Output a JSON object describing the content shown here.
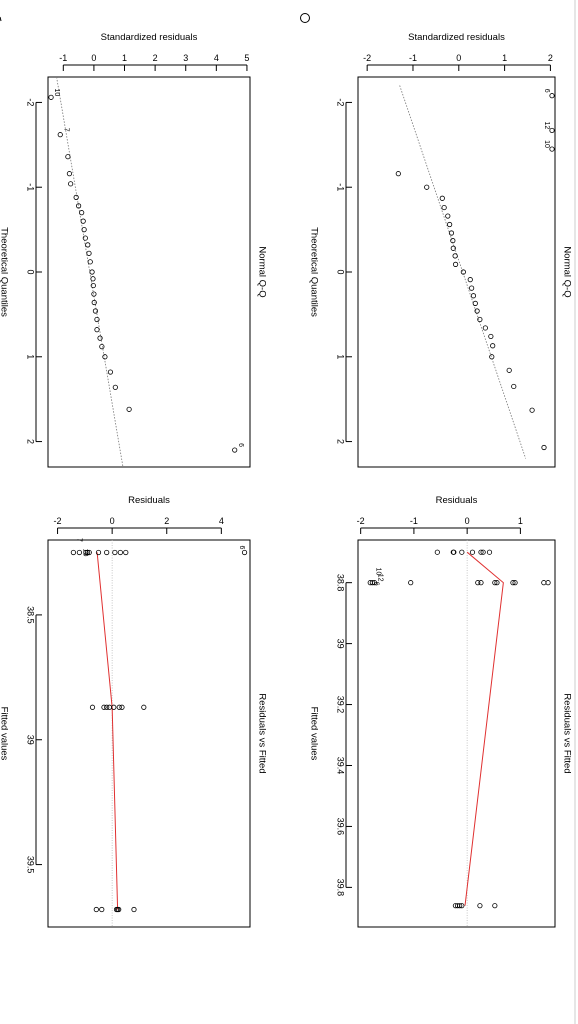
{
  "charts": [
    {
      "id": "qq_right",
      "type": "scatter",
      "title": "Normal Q-Q",
      "xlabel": "Theoretical Quantiles",
      "ylabel": "Standardized residuals",
      "xlim": [
        -2.3,
        2.3
      ],
      "ylim": [
        -2.2,
        2.1
      ],
      "xticks": [
        -2,
        -1,
        0,
        1,
        2
      ],
      "yticks": [
        -2,
        -1,
        0,
        1,
        2
      ],
      "reference_line": [
        [
          -2.2,
          -1.29
        ],
        [
          2.2,
          1.46
        ]
      ],
      "points": [
        [
          -2.08,
          2.2
        ],
        [
          -1.67,
          2.2
        ],
        [
          -1.45,
          2.2
        ],
        [
          -1.16,
          -1.32
        ],
        [
          -1.0,
          -0.7
        ],
        [
          -0.87,
          -0.36
        ],
        [
          -0.76,
          -0.32
        ],
        [
          -0.66,
          -0.24
        ],
        [
          -0.56,
          -0.2
        ],
        [
          -0.46,
          -0.16
        ],
        [
          -0.37,
          -0.13
        ],
        [
          -0.28,
          -0.12
        ],
        [
          -0.19,
          -0.08
        ],
        [
          -0.09,
          -0.07
        ],
        [
          0.0,
          0.1
        ],
        [
          0.09,
          0.25
        ],
        [
          0.19,
          0.28
        ],
        [
          0.28,
          0.32
        ],
        [
          0.37,
          0.36
        ],
        [
          0.46,
          0.4
        ],
        [
          0.56,
          0.46
        ],
        [
          0.66,
          0.58
        ],
        [
          0.76,
          0.7
        ],
        [
          0.87,
          0.74
        ],
        [
          1.0,
          0.72
        ],
        [
          1.16,
          1.1
        ],
        [
          1.35,
          1.2
        ],
        [
          1.63,
          1.6
        ],
        [
          2.07,
          1.86
        ]
      ],
      "labels": [
        {
          "text": "6",
          "x": -2.08,
          "y": 2.2
        },
        {
          "text": "12",
          "x": -1.67,
          "y": 2.2
        },
        {
          "text": "10",
          "x": -1.45,
          "y": 2.2
        }
      ]
    },
    {
      "id": "qq_left",
      "type": "scatter",
      "title": "Normal Q-Q",
      "xlabel": "Theoretical Quantiles",
      "ylabel": "Standardized residuals",
      "xlim": [
        -2.3,
        2.3
      ],
      "ylim": [
        -1.5,
        5.1
      ],
      "xticks": [
        -2,
        -1,
        0,
        1,
        2
      ],
      "yticks": [
        -1,
        0,
        1,
        2,
        3,
        4,
        5
      ],
      "reference_line": [
        [
          -2.3,
          -1.22
        ],
        [
          2.3,
          0.95
        ]
      ],
      "points": [
        [
          -2.06,
          -1.4
        ],
        [
          -1.62,
          -1.1
        ],
        [
          -1.36,
          -0.85
        ],
        [
          -1.16,
          -0.8
        ],
        [
          -1.04,
          -0.76
        ],
        [
          -0.88,
          -0.58
        ],
        [
          -0.78,
          -0.5
        ],
        [
          -0.7,
          -0.4
        ],
        [
          -0.6,
          -0.35
        ],
        [
          -0.5,
          -0.32
        ],
        [
          -0.4,
          -0.28
        ],
        [
          -0.32,
          -0.2
        ],
        [
          -0.22,
          -0.16
        ],
        [
          -0.12,
          -0.12
        ],
        [
          0.0,
          -0.06
        ],
        [
          0.08,
          -0.03
        ],
        [
          0.16,
          -0.02
        ],
        [
          0.26,
          0.0
        ],
        [
          0.36,
          0.01
        ],
        [
          0.46,
          0.05
        ],
        [
          0.56,
          0.1
        ],
        [
          0.68,
          0.1
        ],
        [
          0.78,
          0.2
        ],
        [
          0.88,
          0.26
        ],
        [
          1.0,
          0.36
        ],
        [
          1.18,
          0.54
        ],
        [
          1.36,
          0.7
        ],
        [
          1.62,
          1.15
        ],
        [
          2.1,
          4.6
        ]
      ],
      "labels": [
        {
          "text": "10",
          "x": -2.06,
          "y": -1.4
        },
        {
          "text": "7",
          "x": -1.62,
          "y": -1.1
        },
        {
          "text": "6",
          "x": 2.1,
          "y": 4.6
        }
      ]
    },
    {
      "id": "rvf_right",
      "type": "scatter",
      "title": "Residuals vs Fitted",
      "xlabel": "Fitted values",
      "ylabel": "Residuals",
      "xlim": [
        38.66,
        39.93
      ],
      "ylim": [
        -2.05,
        1.65
      ],
      "xticks": [
        38.8,
        39.0,
        39.2,
        39.4,
        39.6,
        39.8
      ],
      "yticks": [
        -2,
        -1,
        0,
        1
      ],
      "hline": 0,
      "smooth": [
        [
          38.7,
          0.0
        ],
        [
          38.8,
          0.68
        ],
        [
          39.86,
          -0.04
        ]
      ],
      "points": [
        [
          38.7,
          -0.56
        ],
        [
          38.7,
          -0.26
        ],
        [
          38.7,
          -0.25
        ],
        [
          38.7,
          -0.1
        ],
        [
          38.7,
          0.1
        ],
        [
          38.7,
          0.26
        ],
        [
          38.7,
          0.3
        ],
        [
          38.7,
          0.42
        ],
        [
          38.8,
          -1.82
        ],
        [
          38.8,
          -1.78
        ],
        [
          38.8,
          -1.74
        ],
        [
          38.8,
          -1.06
        ],
        [
          38.8,
          0.2
        ],
        [
          38.8,
          0.26
        ],
        [
          38.8,
          0.52
        ],
        [
          38.8,
          0.56
        ],
        [
          38.8,
          0.86
        ],
        [
          38.8,
          0.9
        ],
        [
          38.8,
          1.44
        ],
        [
          38.8,
          1.52
        ],
        [
          39.86,
          -0.22
        ],
        [
          39.86,
          -0.18
        ],
        [
          39.86,
          -0.14
        ],
        [
          39.86,
          -0.1
        ],
        [
          39.86,
          0.24
        ],
        [
          39.86,
          0.52
        ]
      ],
      "labels": [
        {
          "text": "6",
          "x": 38.82,
          "y": -1.82
        },
        {
          "text": "12",
          "x": 38.8,
          "y": -1.74
        },
        {
          "text": "10",
          "x": 38.78,
          "y": -1.78
        }
      ]
    },
    {
      "id": "rvf_left",
      "type": "scatter",
      "title": "Residuals vs Fitted",
      "xlabel": "Fitted values",
      "ylabel": "Residuals",
      "xlim": [
        38.2,
        39.75
      ],
      "ylim": [
        -2.35,
        5.05
      ],
      "xticks": [
        38.5,
        39.0,
        39.5
      ],
      "yticks": [
        -2,
        0,
        2,
        4
      ],
      "hline": 0,
      "smooth": [
        [
          38.25,
          -0.55
        ],
        [
          38.87,
          0.0
        ],
        [
          39.68,
          0.2
        ]
      ],
      "points": [
        [
          38.25,
          -1.42
        ],
        [
          38.25,
          -1.2
        ],
        [
          38.25,
          -0.96
        ],
        [
          38.25,
          -0.9
        ],
        [
          38.25,
          -0.84
        ],
        [
          38.25,
          -0.5
        ],
        [
          38.25,
          -0.2
        ],
        [
          38.25,
          0.1
        ],
        [
          38.25,
          0.3
        ],
        [
          38.25,
          0.5
        ],
        [
          38.25,
          4.85
        ],
        [
          38.87,
          -0.72
        ],
        [
          38.87,
          -0.3
        ],
        [
          38.87,
          -0.2
        ],
        [
          38.87,
          -0.1
        ],
        [
          38.87,
          0.06
        ],
        [
          38.87,
          0.26
        ],
        [
          38.87,
          0.36
        ],
        [
          38.87,
          1.16
        ],
        [
          39.68,
          -0.58
        ],
        [
          39.68,
          -0.38
        ],
        [
          39.68,
          0.16
        ],
        [
          39.68,
          0.2
        ],
        [
          39.68,
          0.24
        ],
        [
          39.68,
          0.8
        ]
      ],
      "labels": [
        {
          "text": "6",
          "x": 38.25,
          "y": 4.85
        },
        {
          "text": "7",
          "x": 38.22,
          "y": -1.42
        },
        {
          "text": "10",
          "x": 38.27,
          "y": -1.2
        }
      ]
    }
  ]
}
